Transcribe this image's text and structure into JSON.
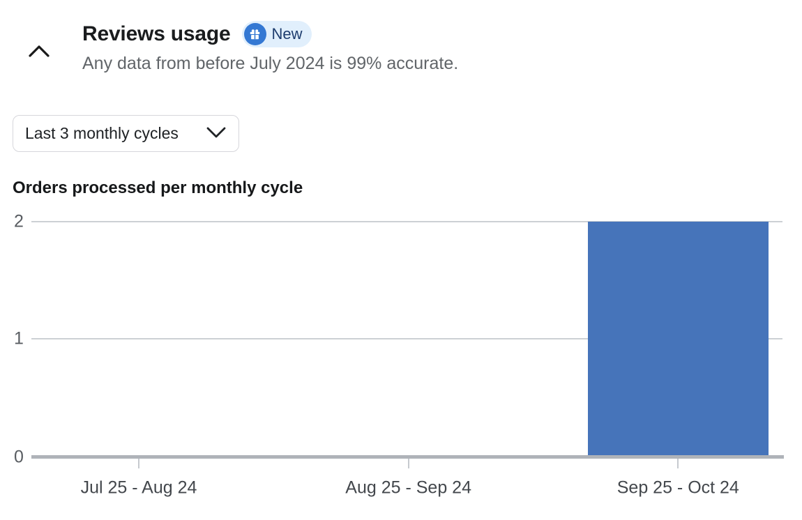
{
  "header": {
    "title": "Reviews usage",
    "badge": {
      "label": "New",
      "icon": "gift-icon"
    },
    "subtitle": "Any data from before July 2024 is 99% accurate."
  },
  "filter": {
    "selected": "Last 3 monthly cycles"
  },
  "chart_data": {
    "type": "bar",
    "title": "Orders processed per monthly cycle",
    "categories": [
      "Jul 25 - Aug 24",
      "Aug 25 - Sep 24",
      "Sep 25 - Oct 24"
    ],
    "values": [
      0,
      0,
      2
    ],
    "xlabel": "",
    "ylabel": "",
    "ylim": [
      0,
      2
    ],
    "yticks": [
      2,
      1,
      0
    ],
    "grid": true,
    "legend": false,
    "bar_color": "#4674BA"
  },
  "colors": {
    "bar": "#4674BA",
    "badge_bg": "#E1EFFC",
    "badge_icon_bg": "#3478D3",
    "badge_text": "#1D3C6E",
    "gridline": "#CCD0D4",
    "axis_line": "#AFB3B9",
    "tick": "#C6CACF",
    "y_label": "#595D62",
    "x_label": "#43474C",
    "title": "#1A1C1E",
    "subtitle": "#616569"
  }
}
